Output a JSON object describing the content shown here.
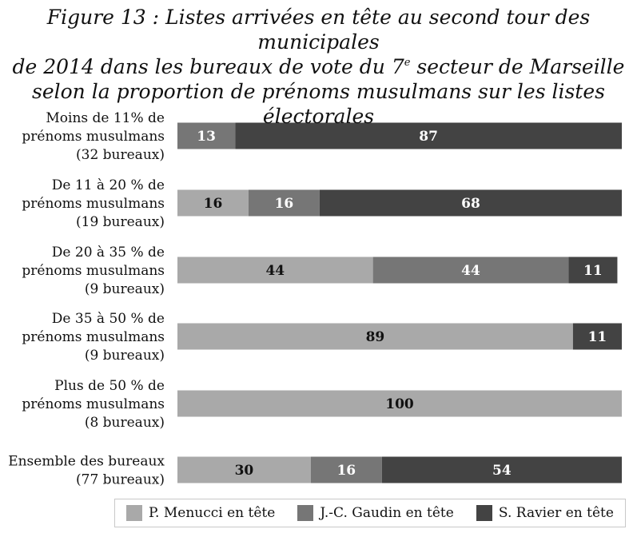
{
  "title": {
    "line1": "Figure 13 : Listes arrivées en tête au second tour des municipales",
    "line2_before": "de 2014 dans les bureaux de vote du 7",
    "line2_sup": "e",
    "line2_after": " secteur de Marseille",
    "line3": "selon la proportion de prénoms musulmans sur les listes électorales"
  },
  "chart_data": {
    "type": "bar",
    "orientation": "horizontal",
    "stacked": true,
    "unit": "%",
    "categories": [
      [
        "Moins de 11% de",
        "prénoms musulmans",
        "(32 bureaux)"
      ],
      [
        "De 11 à 20 % de",
        "prénoms musulmans",
        "(19 bureaux)"
      ],
      [
        "De 20 à 35 % de",
        "prénoms musulmans",
        "(9 bureaux)"
      ],
      [
        "De 35 à 50 % de",
        "prénoms musulmans",
        "(9 bureaux)"
      ],
      [
        "Plus de 50 % de",
        "prénoms musulmans",
        "(8 bureaux)"
      ],
      [
        "Ensemble des bureaux",
        "(77 bureaux)"
      ]
    ],
    "series": [
      {
        "name": "P. Menucci en tête",
        "color": "#a9a9a9",
        "values": [
          0,
          16,
          44,
          89,
          100,
          30
        ]
      },
      {
        "name": "J.-C. Gaudin en tête",
        "color": "#767676",
        "values": [
          13,
          16,
          44,
          0,
          0,
          16
        ]
      },
      {
        "name": "S. Ravier en tête",
        "color": "#434343",
        "values": [
          87,
          68,
          11,
          11,
          0,
          54
        ]
      }
    ],
    "xlim": [
      0,
      100
    ],
    "legend_position": "bottom"
  }
}
